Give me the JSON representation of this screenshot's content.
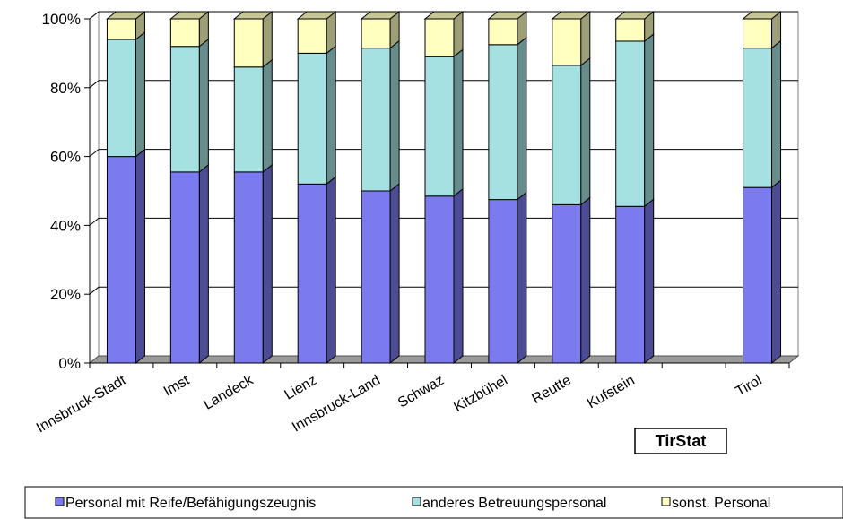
{
  "chart_data": {
    "type": "bar",
    "stacked": true,
    "percent_stacked": true,
    "categories": [
      "Innsbruck-Stadt",
      "Imst",
      "Landeck",
      "Lienz",
      "Innsbruck-Land",
      "Schwaz",
      "Kitzbühel",
      "Reutte",
      "Kufstein",
      "",
      "Tirol"
    ],
    "series": [
      {
        "name": "Personal mit Reife/Befähigungszeugnis",
        "values": [
          60,
          55.5,
          55.5,
          52,
          50,
          48.5,
          47.5,
          46,
          45.5,
          null,
          51
        ],
        "color": "#7b7bef"
      },
      {
        "name": "anderes Betreuungspersonal",
        "values": [
          34,
          36.5,
          30.5,
          38,
          41.5,
          40.5,
          45,
          40.5,
          48,
          null,
          40.5
        ],
        "color": "#a6e1e1"
      },
      {
        "name": "sonst. Personal",
        "values": [
          6,
          8,
          14,
          10,
          8.5,
          11,
          7.5,
          13.5,
          6.5,
          null,
          8.5
        ],
        "color": "#ffffc0"
      }
    ],
    "yticks": [
      "0%",
      "20%",
      "40%",
      "60%",
      "80%",
      "100%"
    ],
    "ylim": [
      0,
      100
    ],
    "grid": true,
    "legend": "bottom"
  },
  "stamp": {
    "text": "TirStat"
  }
}
